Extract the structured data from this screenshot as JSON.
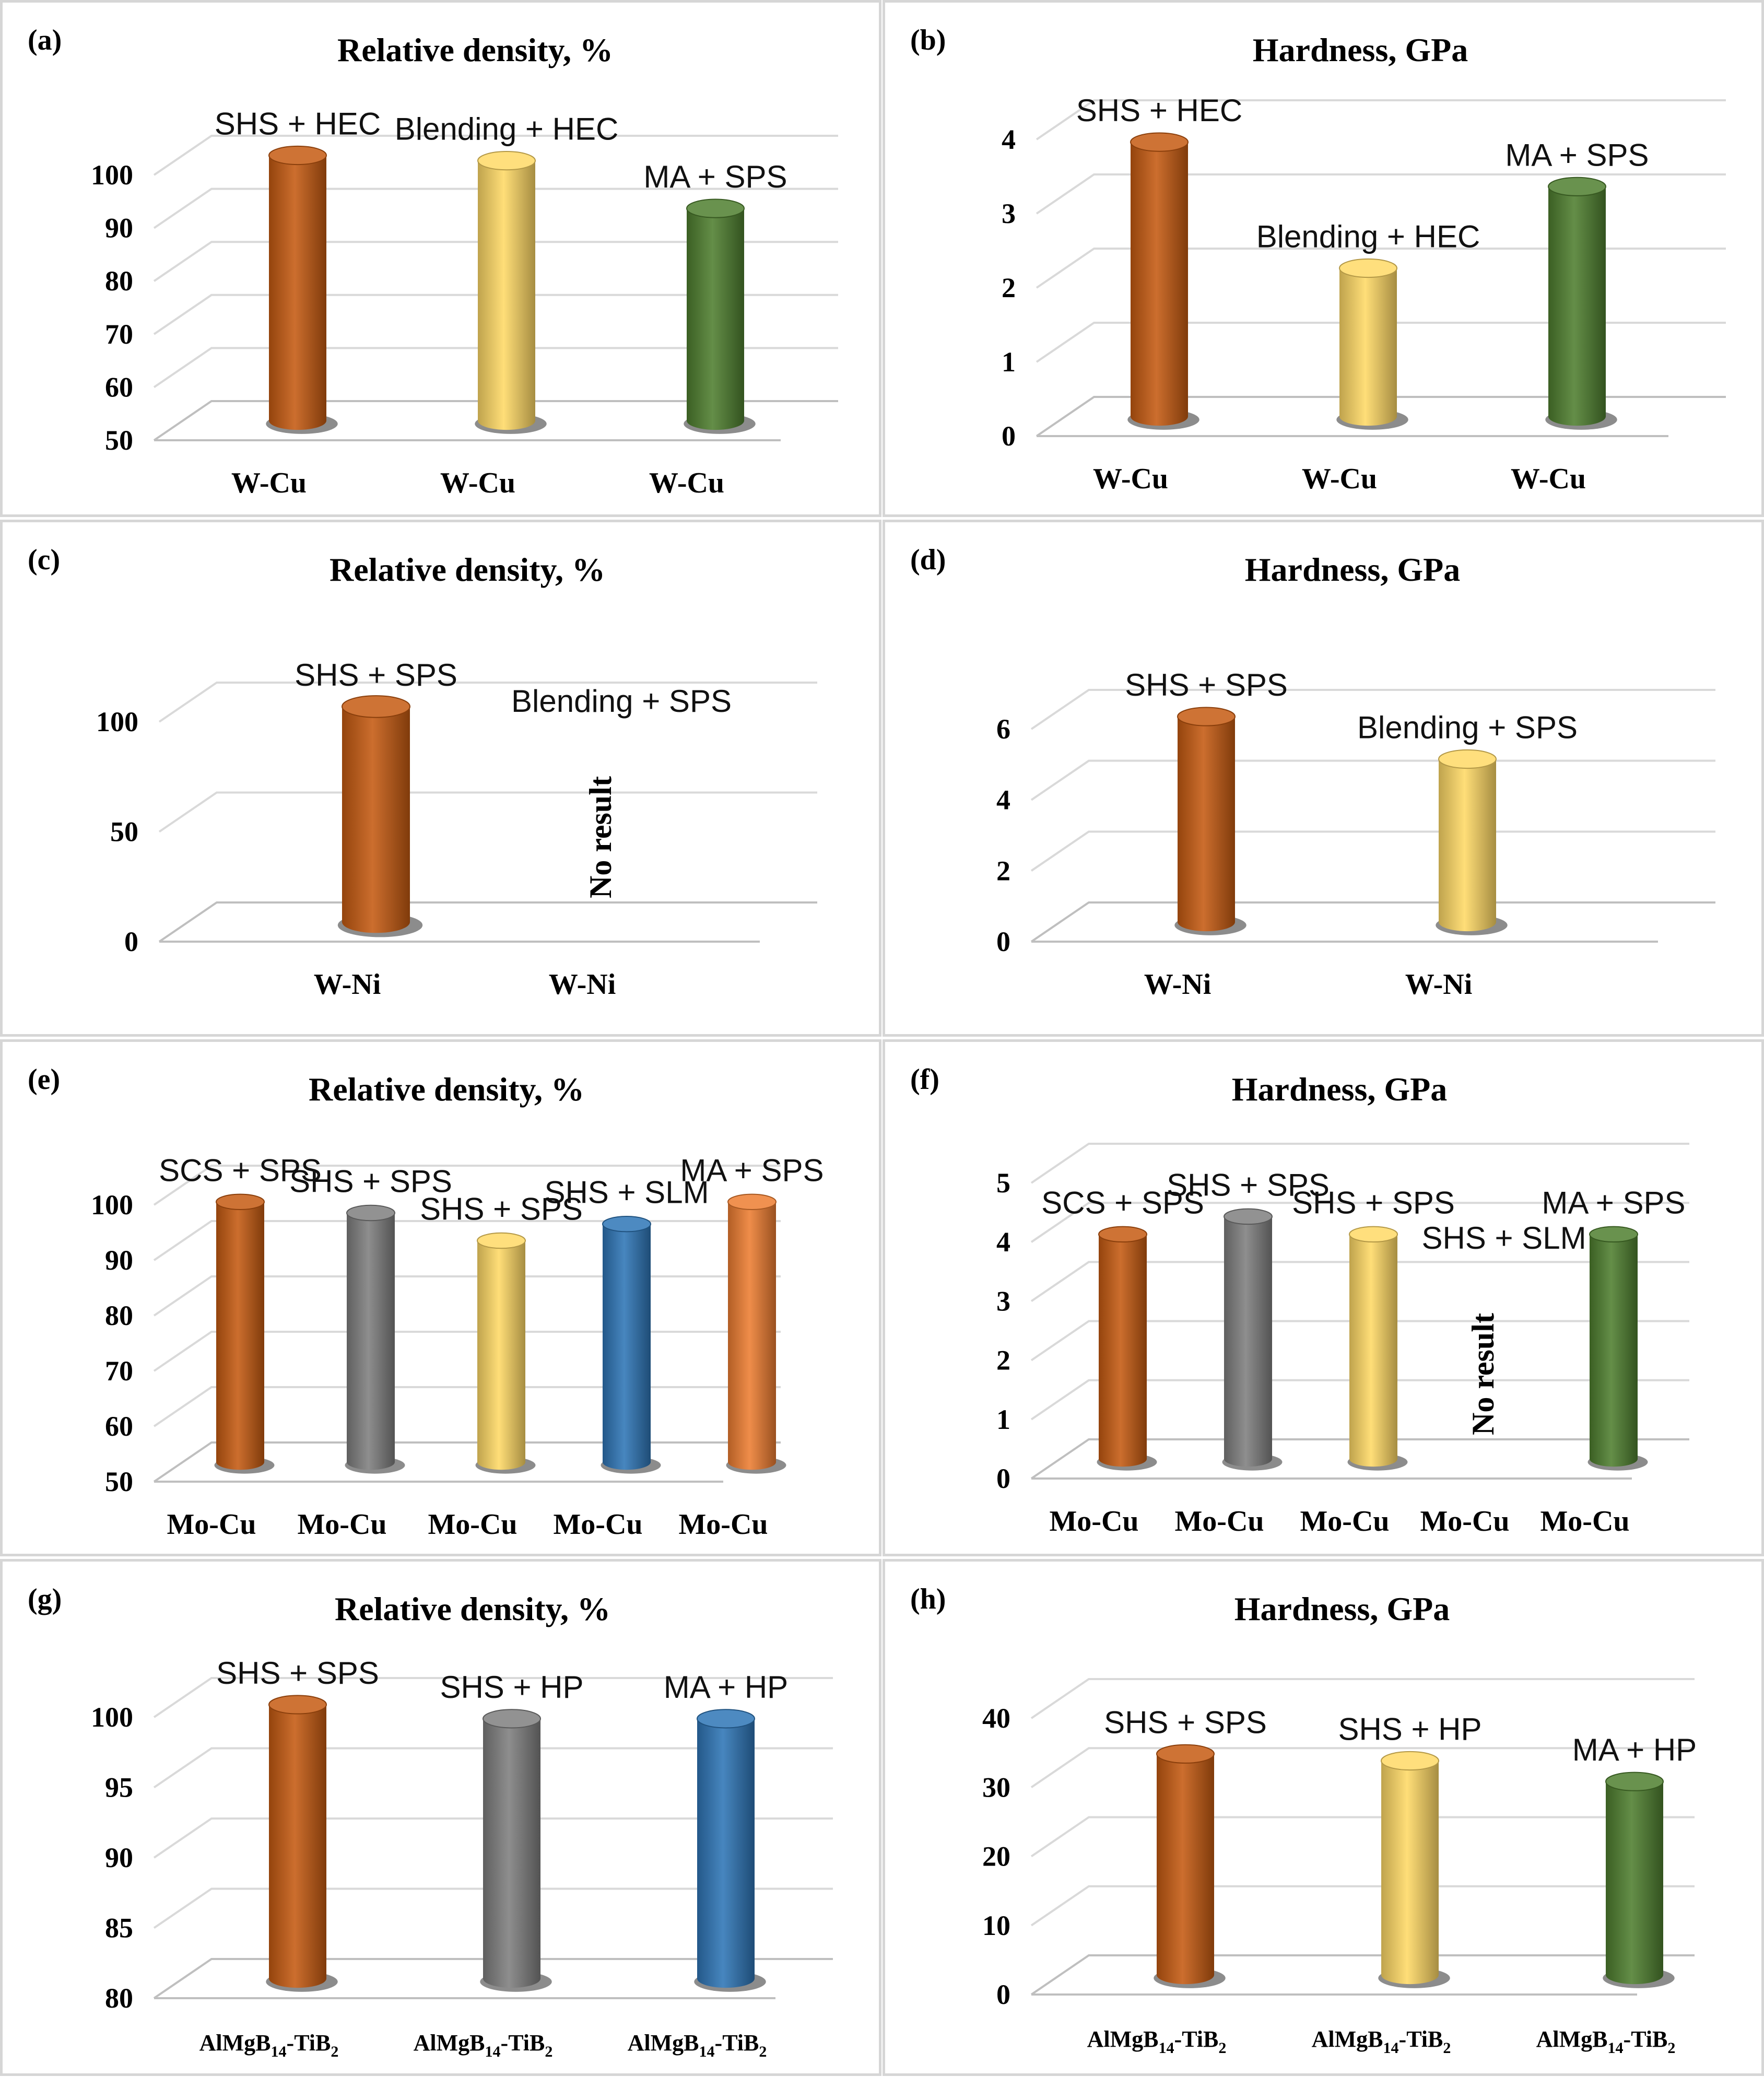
{
  "colors": {
    "orange": "#c55a11",
    "yellow": "#ffd966",
    "green": "#4f7f2f",
    "gray": "#7f7f7f",
    "blue": "#2e75b6",
    "light_orange": "#ed7d31"
  },
  "chart_data": [
    {
      "panel": "(a)",
      "type": "bar",
      "title": "Relative density, %",
      "ylim": [
        50,
        100
      ],
      "yticks": [
        50,
        60,
        70,
        80,
        90,
        100
      ],
      "categories": [
        "W-Cu",
        "W-Cu",
        "W-Cu"
      ],
      "values": [
        100,
        99,
        90
      ],
      "labels": [
        "SHS + HEC",
        "Blending + HEC",
        "MA + SPS"
      ],
      "bar_colors": [
        "orange",
        "yellow",
        "green"
      ]
    },
    {
      "panel": "(b)",
      "type": "bar",
      "title": "Hardness, GPa",
      "ylim": [
        0,
        4
      ],
      "yticks": [
        0,
        1,
        2,
        3,
        4
      ],
      "categories": [
        "W-Cu",
        "W-Cu",
        "W-Cu"
      ],
      "values": [
        3.7,
        2.0,
        3.1
      ],
      "labels": [
        "SHS + HEC",
        "Blending + HEC",
        "MA + SPS"
      ],
      "bar_colors": [
        "orange",
        "yellow",
        "green"
      ]
    },
    {
      "panel": "(c)",
      "type": "bar",
      "title": "Relative density, %",
      "ylim": [
        0,
        100
      ],
      "yticks": [
        0,
        50,
        100
      ],
      "categories": [
        "W-Ni",
        "W-Ni"
      ],
      "values": [
        98,
        null
      ],
      "labels": [
        "SHS + SPS",
        "Blending + SPS"
      ],
      "bar_colors": [
        "orange",
        "yellow"
      ],
      "no_result_text": "No result"
    },
    {
      "panel": "(d)",
      "type": "bar",
      "title": "Hardness, GPa",
      "ylim": [
        0,
        6
      ],
      "yticks": [
        0,
        2,
        4,
        6
      ],
      "categories": [
        "W-Ni",
        "W-Ni"
      ],
      "values": [
        5.8,
        4.6
      ],
      "labels": [
        "SHS + SPS",
        "Blending + SPS"
      ],
      "bar_colors": [
        "orange",
        "yellow"
      ]
    },
    {
      "panel": "(e)",
      "type": "bar",
      "title": "Relative density, %",
      "ylim": [
        50,
        100
      ],
      "yticks": [
        50,
        60,
        70,
        80,
        90,
        100
      ],
      "categories": [
        "Mo-Cu",
        "Mo-Cu",
        "Mo-Cu",
        "Mo-Cu",
        "Mo-Cu"
      ],
      "values": [
        97,
        95,
        90,
        93,
        97
      ],
      "labels": [
        "SCS + SPS",
        "SHS + SPS",
        "SHS + SPS",
        "SHS + SLM",
        "MA + SPS"
      ],
      "bar_colors": [
        "orange",
        "gray",
        "yellow",
        "blue",
        "light_orange"
      ]
    },
    {
      "panel": "(f)",
      "type": "bar",
      "title": "Hardness, GPa",
      "ylim": [
        0,
        5
      ],
      "yticks": [
        0,
        1,
        2,
        3,
        4,
        5
      ],
      "categories": [
        "Mo-Cu",
        "Mo-Cu",
        "Mo-Cu",
        "Mo-Cu",
        "Mo-Cu"
      ],
      "values": [
        3.8,
        4.1,
        3.8,
        null,
        3.8
      ],
      "labels": [
        "SCS + SPS",
        "SHS + SPS",
        "SHS + SPS",
        "SHS + SLM",
        "MA + SPS"
      ],
      "bar_colors": [
        "orange",
        "gray",
        "yellow",
        "blue",
        "green"
      ],
      "no_result_text": "No result"
    },
    {
      "panel": "(g)",
      "type": "bar",
      "title": "Relative density, %",
      "ylim": [
        80,
        100
      ],
      "yticks": [
        80,
        85,
        90,
        95,
        100
      ],
      "categories": [
        "AlMgB14-TiB2",
        "AlMgB14-TiB2",
        "AlMgB14-TiB2"
      ],
      "values": [
        99.5,
        98.5,
        98.5
      ],
      "labels": [
        "SHS + SPS",
        "SHS + HP",
        "MA + HP"
      ],
      "bar_colors": [
        "orange",
        "gray",
        "blue"
      ]
    },
    {
      "panel": "(h)",
      "type": "bar",
      "title": "Hardness, GPa",
      "ylim": [
        0,
        40
      ],
      "yticks": [
        0,
        10,
        20,
        30,
        40
      ],
      "categories": [
        "AlMgB14-TiB2",
        "AlMgB14-TiB2",
        "AlMgB14-TiB2"
      ],
      "values": [
        32,
        31,
        28
      ],
      "labels": [
        "SHS + SPS",
        "SHS + HP",
        "MA + HP"
      ],
      "bar_colors": [
        "orange",
        "yellow",
        "green"
      ]
    }
  ]
}
